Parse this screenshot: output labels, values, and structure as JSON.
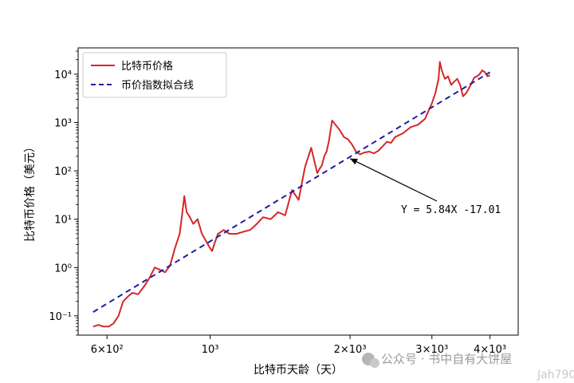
{
  "chart_data": {
    "type": "line",
    "xscale": "log",
    "yscale": "log",
    "xlabel": "比特币天龄（天）",
    "ylabel": "比特币价格（美元）",
    "xlim": [
      520,
      4600
    ],
    "ylim": [
      0.04,
      35000
    ],
    "x_ticks": [
      {
        "value": 600,
        "label": "6×10²"
      },
      {
        "value": 1000,
        "label": "10³"
      },
      {
        "value": 2000,
        "label": "2×10³"
      },
      {
        "value": 3000,
        "label": "3×10³"
      },
      {
        "value": 4000,
        "label": "4×10³"
      }
    ],
    "y_ticks": [
      {
        "value": 0.1,
        "label": "10⁻¹"
      },
      {
        "value": 1,
        "label": "10⁰"
      },
      {
        "value": 10,
        "label": "10¹"
      },
      {
        "value": 100,
        "label": "10²"
      },
      {
        "value": 1000,
        "label": "10³"
      },
      {
        "value": 10000,
        "label": "10⁴"
      }
    ],
    "legend_position": "top-left",
    "series": [
      {
        "name": "比特币价格",
        "color": "#d62728",
        "style": "solid",
        "x": [
          560,
          575,
          590,
          605,
          620,
          635,
          650,
          665,
          680,
          700,
          720,
          740,
          760,
          780,
          800,
          820,
          840,
          860,
          870,
          880,
          890,
          900,
          920,
          940,
          960,
          980,
          1000,
          1010,
          1020,
          1040,
          1070,
          1100,
          1140,
          1180,
          1220,
          1260,
          1300,
          1350,
          1400,
          1450,
          1500,
          1550,
          1600,
          1650,
          1700,
          1720,
          1740,
          1760,
          1780,
          1800,
          1830,
          1860,
          1900,
          1940,
          1980,
          2020,
          2060,
          2100,
          2150,
          2200,
          2250,
          2300,
          2350,
          2400,
          2450,
          2500,
          2600,
          2700,
          2800,
          2900,
          3000,
          3050,
          3100,
          3120,
          3150,
          3200,
          3250,
          3300,
          3350,
          3400,
          3450,
          3500,
          3550,
          3600,
          3650,
          3700,
          3750,
          3800,
          3850,
          3900,
          3950,
          4000
        ],
        "y": [
          0.06,
          0.065,
          0.06,
          0.06,
          0.07,
          0.1,
          0.2,
          0.25,
          0.3,
          0.28,
          0.4,
          0.6,
          1.0,
          0.9,
          0.8,
          1.1,
          2.5,
          5,
          12,
          30,
          14,
          12,
          8,
          10,
          5,
          3.5,
          2.5,
          2.2,
          3,
          5,
          6,
          5,
          5,
          5.5,
          6,
          8,
          11,
          10,
          14,
          12,
          40,
          25,
          120,
          300,
          90,
          110,
          130,
          200,
          250,
          400,
          1100,
          900,
          700,
          500,
          450,
          350,
          250,
          220,
          240,
          250,
          230,
          260,
          320,
          400,
          380,
          500,
          600,
          800,
          900,
          1200,
          2500,
          4000,
          8000,
          18000,
          12000,
          8000,
          9000,
          6000,
          7000,
          8000,
          6000,
          3500,
          4000,
          5000,
          6500,
          8500,
          9000,
          10000,
          12000,
          11000,
          9000,
          9500
        ]
      },
      {
        "name": "币价指数拟合线",
        "color": "#1f1f9f",
        "style": "dashed",
        "x": [
          560,
          4000
        ],
        "y": [
          0.12,
          11000
        ]
      }
    ],
    "annotations": [
      {
        "text": "Y = 5.84X -17.01",
        "target_x": 2000,
        "target_y": 180
      }
    ]
  },
  "watermark": {
    "text": "公众号 · 书中自有大饼屋",
    "overlay_text": "Jah790"
  }
}
